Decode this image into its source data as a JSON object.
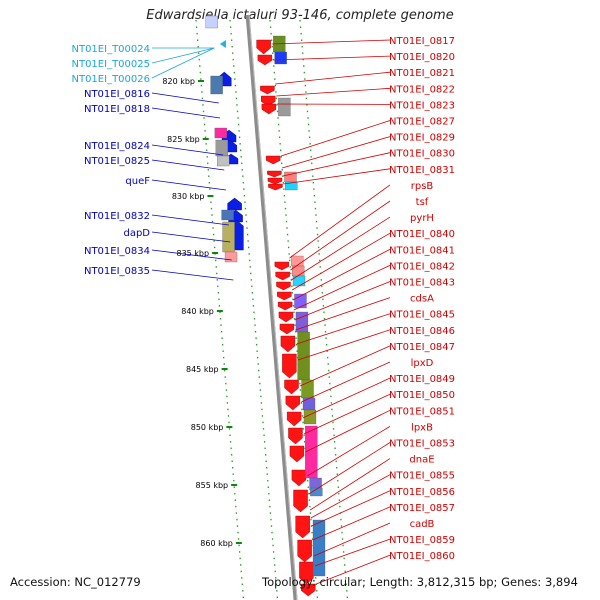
{
  "title": "Edwardsiella ictaluri 93-146, complete genome",
  "footer": {
    "accession": "Accession: NC_012779",
    "summary": "Topology: circular; Length: 3,812,315 bp; Genes: 3,894"
  },
  "colors": {
    "left_label": "#0000c8",
    "trna_label": "#1aa7d6",
    "right_label": "#d00000",
    "backbone": "#8c8c8c",
    "tick": "#0a8a0a"
  },
  "ticks": [
    {
      "label": "820 kbp"
    },
    {
      "label": "825 kbp"
    },
    {
      "label": "830 kbp"
    },
    {
      "label": "835 kbp"
    },
    {
      "label": "840 kbp"
    },
    {
      "label": "845 kbp"
    },
    {
      "label": "850 kbp"
    },
    {
      "label": "855 kbp"
    },
    {
      "label": "860 kbp"
    }
  ],
  "left_labels": [
    {
      "text": "NT01EI_T00024",
      "kind": "trna"
    },
    {
      "text": "NT01EI_T00025",
      "kind": "trna"
    },
    {
      "text": "NT01EI_T00026",
      "kind": "trna"
    },
    {
      "text": "NT01EI_0816",
      "kind": "gene"
    },
    {
      "text": "NT01EI_0818",
      "kind": "gene"
    },
    {
      "text": "NT01EI_0824",
      "kind": "gene"
    },
    {
      "text": "NT01EI_0825",
      "kind": "gene"
    },
    {
      "text": "queF",
      "kind": "gene"
    },
    {
      "text": "NT01EI_0832",
      "kind": "gene"
    },
    {
      "text": "dapD",
      "kind": "gene"
    },
    {
      "text": "NT01EI_0834",
      "kind": "gene"
    },
    {
      "text": "NT01EI_0835",
      "kind": "gene"
    }
  ],
  "right_labels": [
    "NT01EI_0817",
    "NT01EI_0820",
    "NT01EI_0821",
    "NT01EI_0822",
    "NT01EI_0823",
    "NT01EI_0827",
    "NT01EI_0829",
    "NT01EI_0830",
    "NT01EI_0831",
    "rpsB",
    "tsf",
    "pyrH",
    "NT01EI_0840",
    "NT01EI_0841",
    "NT01EI_0842",
    "NT01EI_0843",
    "cdsA",
    "NT01EI_0845",
    "NT01EI_0846",
    "NT01EI_0847",
    "lpxD",
    "NT01EI_0849",
    "NT01EI_0850",
    "NT01EI_0851",
    "lpxB",
    "NT01EI_0853",
    "dnaE",
    "NT01EI_0855",
    "NT01EI_0856",
    "NT01EI_0857",
    "cadB",
    "NT01EI_0859",
    "NT01EI_0860"
  ]
}
